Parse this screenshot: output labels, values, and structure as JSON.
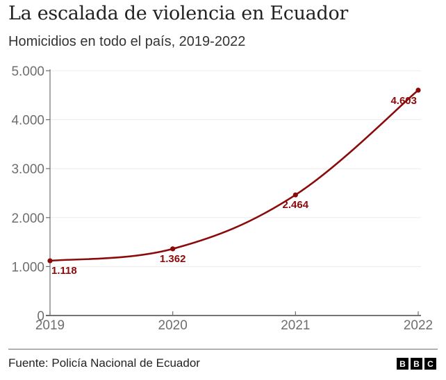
{
  "chart_data": {
    "type": "line",
    "title": "La escalada de violencia en Ecuador",
    "subtitle": "Homicidios en todo el país, 2019-2022",
    "xlabel": "",
    "ylabel": "",
    "x": [
      "2019",
      "2020",
      "2021",
      "2022"
    ],
    "series": [
      {
        "name": "Homicidios",
        "values": [
          1118,
          1362,
          2464,
          4603
        ],
        "labels": [
          "1.118",
          "1.362",
          "2.464",
          "4.603"
        ],
        "color": "#8b0a0a"
      }
    ],
    "ylim": [
      0,
      5000
    ],
    "yticks": [
      0,
      1000,
      2000,
      3000,
      4000,
      5000
    ],
    "ytick_labels": [
      "0",
      "1.000",
      "2.000",
      "3.000",
      "4.000",
      "5.000"
    ],
    "xtick_labels": [
      "2019",
      "2020",
      "2021",
      "2022"
    ],
    "grid": true,
    "legend": "none",
    "source": "Fuente: Policía Nacional de Ecuador"
  },
  "footer": {
    "source": "Fuente: Policía Nacional de Ecuador",
    "logo_letters": [
      "B",
      "B",
      "C"
    ]
  }
}
